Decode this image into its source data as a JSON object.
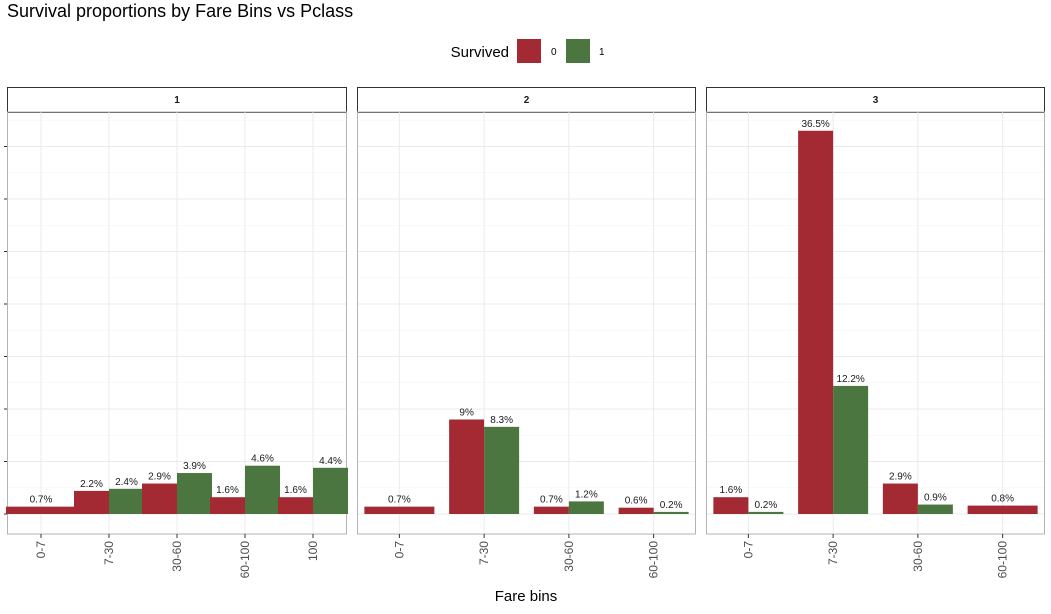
{
  "chart_data": {
    "type": "bar",
    "title": "Survival proportions by Fare Bins vs Pclass",
    "xlabel": "Fare bins",
    "ylabel": "",
    "legend": {
      "title": "Survived",
      "placement": "top",
      "entries": [
        "0",
        "1"
      ]
    },
    "colors": {
      "0": "#a32a33",
      "1": "#4b7640"
    },
    "grid": true,
    "ylim": [
      0,
      38
    ],
    "panels": [
      {
        "label": "1",
        "categories": [
          "0-7",
          "7-30",
          "30-60",
          "60-100",
          "100"
        ],
        "series": [
          {
            "name": "0",
            "values": [
              0.7,
              2.2,
              2.9,
              1.6,
              1.6
            ],
            "labels": [
              "0.7%",
              "2.2%",
              "2.9%",
              "1.6%",
              "1.6%"
            ]
          },
          {
            "name": "1",
            "values": [
              null,
              2.4,
              3.9,
              4.6,
              4.4
            ],
            "labels": [
              "",
              "2.4%",
              "3.9%",
              "4.6%",
              "4.4%"
            ]
          }
        ]
      },
      {
        "label": "2",
        "categories": [
          "0-7",
          "7-30",
          "30-60",
          "60-100"
        ],
        "series": [
          {
            "name": "0",
            "values": [
              0.7,
              9,
              0.7,
              0.6
            ],
            "labels": [
              "0.7%",
              "9%",
              "0.7%",
              "0.6%"
            ]
          },
          {
            "name": "1",
            "values": [
              null,
              8.3,
              1.2,
              0.2
            ],
            "labels": [
              "",
              "8.3%",
              "1.2%",
              "0.2%"
            ]
          }
        ]
      },
      {
        "label": "3",
        "categories": [
          "0-7",
          "7-30",
          "30-60",
          "60-100"
        ],
        "series": [
          {
            "name": "0",
            "values": [
              1.6,
              36.5,
              2.9,
              0.8
            ],
            "labels": [
              "1.6%",
              "36.5%",
              "2.9%",
              "0.8%"
            ]
          },
          {
            "name": "1",
            "values": [
              0.2,
              12.2,
              0.9,
              null
            ],
            "labels": [
              "0.2%",
              "12.2%",
              "0.9%",
              ""
            ]
          }
        ]
      }
    ]
  }
}
